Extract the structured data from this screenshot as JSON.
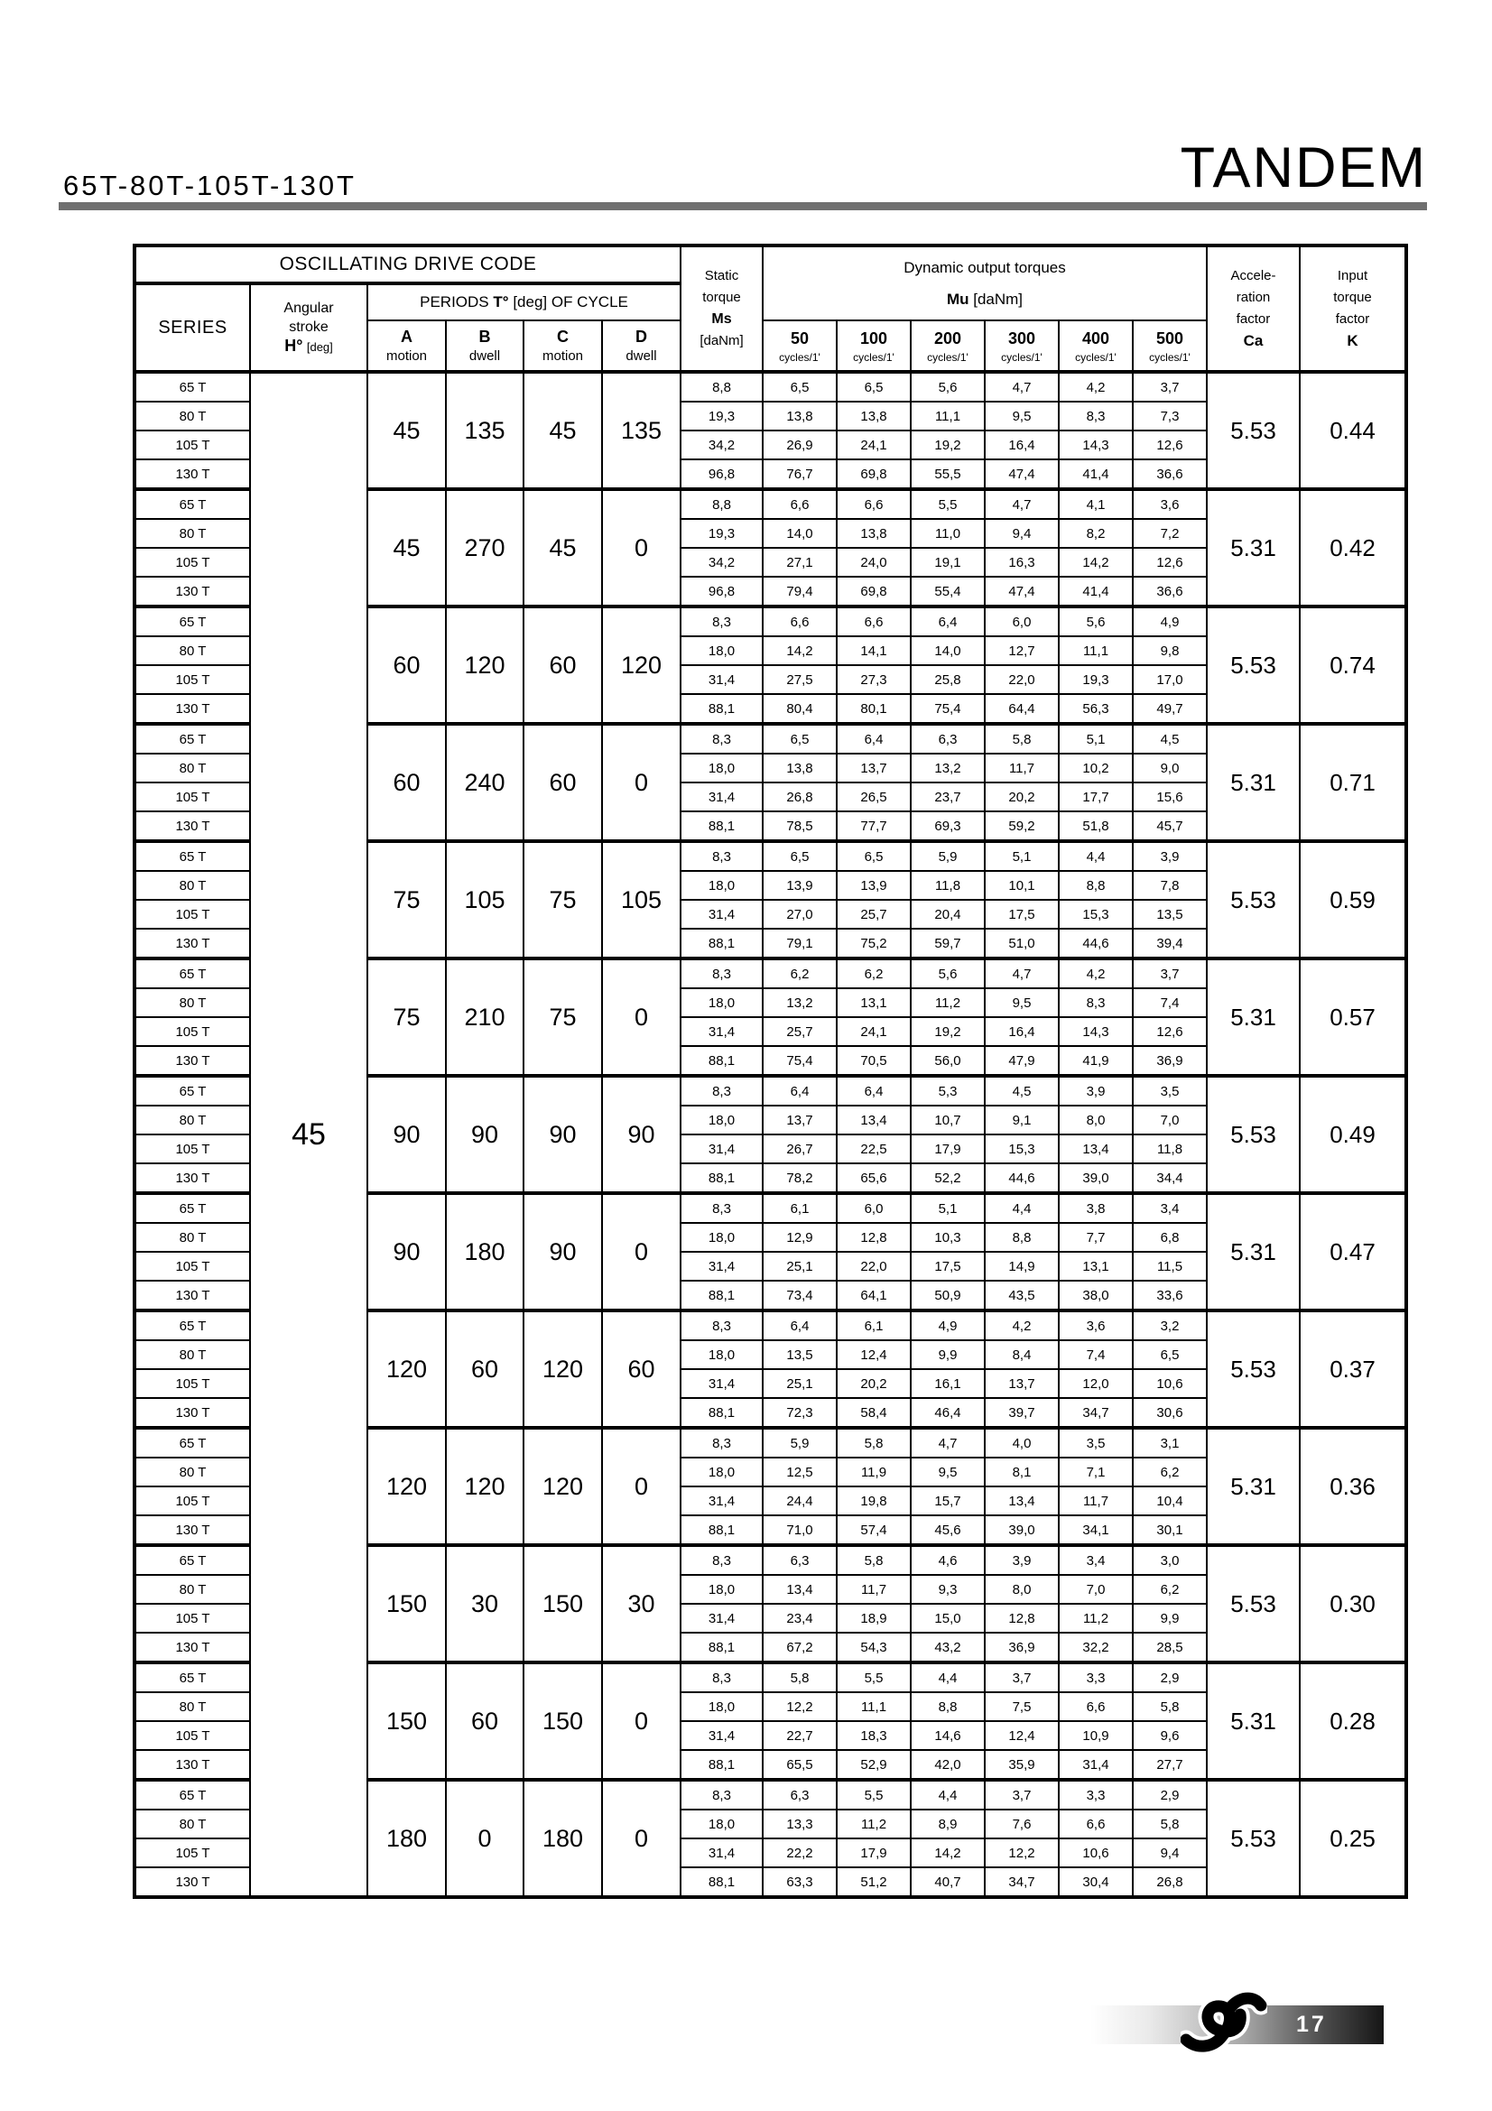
{
  "page": {
    "title_left": "65T-80T-105T-130T",
    "brand": "TANDEM",
    "page_number": "17"
  },
  "table": {
    "headers": {
      "oscillating": "OSCILLATING DRIVE CODE",
      "series": "SERIES",
      "angular_line1": "Angular",
      "angular_line2": "stroke",
      "angular_bold": "H°",
      "angular_unit": "[deg]",
      "periods_pre": "PERIODS",
      "periods_bold": "T°",
      "periods_post": "[deg] OF CYCLE",
      "period_cols": [
        {
          "letter": "A",
          "sub": "motion"
        },
        {
          "letter": "B",
          "sub": "dwell"
        },
        {
          "letter": "C",
          "sub": "motion"
        },
        {
          "letter": "D",
          "sub": "dwell"
        }
      ],
      "static_lines": [
        "Static",
        "torque",
        "Ms",
        "[daNm]"
      ],
      "dynamic": "Dynamic output torques",
      "mu_bold": "Mu",
      "mu_unit": "[daNm]",
      "cycle_cols": [
        "50",
        "100",
        "200",
        "300",
        "400",
        "500"
      ],
      "cycles_sub": "cycles/1'",
      "accel_lines": [
        "Accele-",
        "ration",
        "factor",
        "Ca"
      ],
      "input_lines": [
        "Input",
        "torque",
        "factor",
        "K"
      ]
    },
    "angular_stroke_value": "45",
    "groups": [
      {
        "periods": [
          "45",
          "135",
          "45",
          "135"
        ],
        "ca": "5.53",
        "k": "0.44",
        "rows": [
          {
            "series": "65 T",
            "values": [
              "8,8",
              "6,5",
              "6,5",
              "5,6",
              "4,7",
              "4,2",
              "3,7"
            ]
          },
          {
            "series": "80 T",
            "values": [
              "19,3",
              "13,8",
              "13,8",
              "11,1",
              "9,5",
              "8,3",
              "7,3"
            ]
          },
          {
            "series": "105 T",
            "values": [
              "34,2",
              "26,9",
              "24,1",
              "19,2",
              "16,4",
              "14,3",
              "12,6"
            ]
          },
          {
            "series": "130 T",
            "values": [
              "96,8",
              "76,7",
              "69,8",
              "55,5",
              "47,4",
              "41,4",
              "36,6"
            ]
          }
        ]
      },
      {
        "periods": [
          "45",
          "270",
          "45",
          "0"
        ],
        "ca": "5.31",
        "k": "0.42",
        "rows": [
          {
            "series": "65 T",
            "values": [
              "8,8",
              "6,6",
              "6,6",
              "5,5",
              "4,7",
              "4,1",
              "3,6"
            ]
          },
          {
            "series": "80 T",
            "values": [
              "19,3",
              "14,0",
              "13,8",
              "11,0",
              "9,4",
              "8,2",
              "7,2"
            ]
          },
          {
            "series": "105 T",
            "values": [
              "34,2",
              "27,1",
              "24,0",
              "19,1",
              "16,3",
              "14,2",
              "12,6"
            ]
          },
          {
            "series": "130 T",
            "values": [
              "96,8",
              "79,4",
              "69,8",
              "55,4",
              "47,4",
              "41,4",
              "36,6"
            ]
          }
        ]
      },
      {
        "periods": [
          "60",
          "120",
          "60",
          "120"
        ],
        "ca": "5.53",
        "k": "0.74",
        "rows": [
          {
            "series": "65 T",
            "values": [
              "8,3",
              "6,6",
              "6,6",
              "6,4",
              "6,0",
              "5,6",
              "4,9"
            ]
          },
          {
            "series": "80 T",
            "values": [
              "18,0",
              "14,2",
              "14,1",
              "14,0",
              "12,7",
              "11,1",
              "9,8"
            ]
          },
          {
            "series": "105 T",
            "values": [
              "31,4",
              "27,5",
              "27,3",
              "25,8",
              "22,0",
              "19,3",
              "17,0"
            ]
          },
          {
            "series": "130 T",
            "values": [
              "88,1",
              "80,4",
              "80,1",
              "75,4",
              "64,4",
              "56,3",
              "49,7"
            ]
          }
        ]
      },
      {
        "periods": [
          "60",
          "240",
          "60",
          "0"
        ],
        "ca": "5.31",
        "k": "0.71",
        "rows": [
          {
            "series": "65 T",
            "values": [
              "8,3",
              "6,5",
              "6,4",
              "6,3",
              "5,8",
              "5,1",
              "4,5"
            ]
          },
          {
            "series": "80 T",
            "values": [
              "18,0",
              "13,8",
              "13,7",
              "13,2",
              "11,7",
              "10,2",
              "9,0"
            ]
          },
          {
            "series": "105 T",
            "values": [
              "31,4",
              "26,8",
              "26,5",
              "23,7",
              "20,2",
              "17,7",
              "15,6"
            ]
          },
          {
            "series": "130 T",
            "values": [
              "88,1",
              "78,5",
              "77,7",
              "69,3",
              "59,2",
              "51,8",
              "45,7"
            ]
          }
        ]
      },
      {
        "periods": [
          "75",
          "105",
          "75",
          "105"
        ],
        "ca": "5.53",
        "k": "0.59",
        "rows": [
          {
            "series": "65 T",
            "values": [
              "8,3",
              "6,5",
              "6,5",
              "5,9",
              "5,1",
              "4,4",
              "3,9"
            ]
          },
          {
            "series": "80 T",
            "values": [
              "18,0",
              "13,9",
              "13,9",
              "11,8",
              "10,1",
              "8,8",
              "7,8"
            ]
          },
          {
            "series": "105 T",
            "values": [
              "31,4",
              "27,0",
              "25,7",
              "20,4",
              "17,5",
              "15,3",
              "13,5"
            ]
          },
          {
            "series": "130 T",
            "values": [
              "88,1",
              "79,1",
              "75,2",
              "59,7",
              "51,0",
              "44,6",
              "39,4"
            ]
          }
        ]
      },
      {
        "periods": [
          "75",
          "210",
          "75",
          "0"
        ],
        "ca": "5.31",
        "k": "0.57",
        "rows": [
          {
            "series": "65 T",
            "values": [
              "8,3",
              "6,2",
              "6,2",
              "5,6",
              "4,7",
              "4,2",
              "3,7"
            ]
          },
          {
            "series": "80 T",
            "values": [
              "18,0",
              "13,2",
              "13,1",
              "11,2",
              "9,5",
              "8,3",
              "7,4"
            ]
          },
          {
            "series": "105 T",
            "values": [
              "31,4",
              "25,7",
              "24,1",
              "19,2",
              "16,4",
              "14,3",
              "12,6"
            ]
          },
          {
            "series": "130 T",
            "values": [
              "88,1",
              "75,4",
              "70,5",
              "56,0",
              "47,9",
              "41,9",
              "36,9"
            ]
          }
        ]
      },
      {
        "periods": [
          "90",
          "90",
          "90",
          "90"
        ],
        "ca": "5.53",
        "k": "0.49",
        "rows": [
          {
            "series": "65 T",
            "values": [
              "8,3",
              "6,4",
              "6,4",
              "5,3",
              "4,5",
              "3,9",
              "3,5"
            ]
          },
          {
            "series": "80 T",
            "values": [
              "18,0",
              "13,7",
              "13,4",
              "10,7",
              "9,1",
              "8,0",
              "7,0"
            ]
          },
          {
            "series": "105 T",
            "values": [
              "31,4",
              "26,7",
              "22,5",
              "17,9",
              "15,3",
              "13,4",
              "11,8"
            ]
          },
          {
            "series": "130 T",
            "values": [
              "88,1",
              "78,2",
              "65,6",
              "52,2",
              "44,6",
              "39,0",
              "34,4"
            ]
          }
        ]
      },
      {
        "periods": [
          "90",
          "180",
          "90",
          "0"
        ],
        "ca": "5.31",
        "k": "0.47",
        "rows": [
          {
            "series": "65 T",
            "values": [
              "8,3",
              "6,1",
              "6,0",
              "5,1",
              "4,4",
              "3,8",
              "3,4"
            ]
          },
          {
            "series": "80 T",
            "values": [
              "18,0",
              "12,9",
              "12,8",
              "10,3",
              "8,8",
              "7,7",
              "6,8"
            ]
          },
          {
            "series": "105 T",
            "values": [
              "31,4",
              "25,1",
              "22,0",
              "17,5",
              "14,9",
              "13,1",
              "11,5"
            ]
          },
          {
            "series": "130 T",
            "values": [
              "88,1",
              "73,4",
              "64,1",
              "50,9",
              "43,5",
              "38,0",
              "33,6"
            ]
          }
        ]
      },
      {
        "periods": [
          "120",
          "60",
          "120",
          "60"
        ],
        "ca": "5.53",
        "k": "0.37",
        "rows": [
          {
            "series": "65 T",
            "values": [
              "8,3",
              "6,4",
              "6,1",
              "4,9",
              "4,2",
              "3,6",
              "3,2"
            ]
          },
          {
            "series": "80 T",
            "values": [
              "18,0",
              "13,5",
              "12,4",
              "9,9",
              "8,4",
              "7,4",
              "6,5"
            ]
          },
          {
            "series": "105 T",
            "values": [
              "31,4",
              "25,1",
              "20,2",
              "16,1",
              "13,7",
              "12,0",
              "10,6"
            ]
          },
          {
            "series": "130 T",
            "values": [
              "88,1",
              "72,3",
              "58,4",
              "46,4",
              "39,7",
              "34,7",
              "30,6"
            ]
          }
        ]
      },
      {
        "periods": [
          "120",
          "120",
          "120",
          "0"
        ],
        "ca": "5.31",
        "k": "0.36",
        "rows": [
          {
            "series": "65 T",
            "values": [
              "8,3",
              "5,9",
              "5,8",
              "4,7",
              "4,0",
              "3,5",
              "3,1"
            ]
          },
          {
            "series": "80 T",
            "values": [
              "18,0",
              "12,5",
              "11,9",
              "9,5",
              "8,1",
              "7,1",
              "6,2"
            ]
          },
          {
            "series": "105 T",
            "values": [
              "31,4",
              "24,4",
              "19,8",
              "15,7",
              "13,4",
              "11,7",
              "10,4"
            ]
          },
          {
            "series": "130 T",
            "values": [
              "88,1",
              "71,0",
              "57,4",
              "45,6",
              "39,0",
              "34,1",
              "30,1"
            ]
          }
        ]
      },
      {
        "periods": [
          "150",
          "30",
          "150",
          "30"
        ],
        "ca": "5.53",
        "k": "0.30",
        "rows": [
          {
            "series": "65 T",
            "values": [
              "8,3",
              "6,3",
              "5,8",
              "4,6",
              "3,9",
              "3,4",
              "3,0"
            ]
          },
          {
            "series": "80 T",
            "values": [
              "18,0",
              "13,4",
              "11,7",
              "9,3",
              "8,0",
              "7,0",
              "6,2"
            ]
          },
          {
            "series": "105 T",
            "values": [
              "31,4",
              "23,4",
              "18,9",
              "15,0",
              "12,8",
              "11,2",
              "9,9"
            ]
          },
          {
            "series": "130 T",
            "values": [
              "88,1",
              "67,2",
              "54,3",
              "43,2",
              "36,9",
              "32,2",
              "28,5"
            ]
          }
        ]
      },
      {
        "periods": [
          "150",
          "60",
          "150",
          "0"
        ],
        "ca": "5.31",
        "k": "0.28",
        "rows": [
          {
            "series": "65 T",
            "values": [
              "8,3",
              "5,8",
              "5,5",
              "4,4",
              "3,7",
              "3,3",
              "2,9"
            ]
          },
          {
            "series": "80 T",
            "values": [
              "18,0",
              "12,2",
              "11,1",
              "8,8",
              "7,5",
              "6,6",
              "5,8"
            ]
          },
          {
            "series": "105 T",
            "values": [
              "31,4",
              "22,7",
              "18,3",
              "14,6",
              "12,4",
              "10,9",
              "9,6"
            ]
          },
          {
            "series": "130 T",
            "values": [
              "88,1",
              "65,5",
              "52,9",
              "42,0",
              "35,9",
              "31,4",
              "27,7"
            ]
          }
        ]
      },
      {
        "periods": [
          "180",
          "0",
          "180",
          "0"
        ],
        "ca": "5.53",
        "k": "0.25",
        "rows": [
          {
            "series": "65 T",
            "values": [
              "8,3",
              "6,3",
              "5,5",
              "4,4",
              "3,7",
              "3,3",
              "2,9"
            ]
          },
          {
            "series": "80 T",
            "values": [
              "18,0",
              "13,3",
              "11,2",
              "8,9",
              "7,6",
              "6,6",
              "5,8"
            ]
          },
          {
            "series": "105 T",
            "values": [
              "31,4",
              "22,2",
              "17,9",
              "14,2",
              "12,2",
              "10,6",
              "9,4"
            ]
          },
          {
            "series": "130 T",
            "values": [
              "88,1",
              "63,3",
              "51,2",
              "40,7",
              "34,7",
              "30,4",
              "26,8"
            ]
          }
        ]
      }
    ]
  }
}
